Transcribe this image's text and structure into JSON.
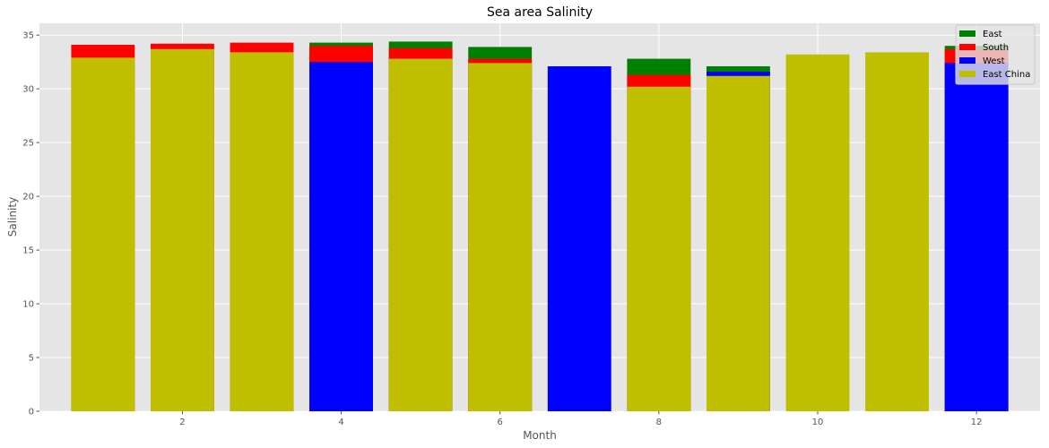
{
  "chart_data": {
    "type": "bar",
    "title": "Sea area Salinity",
    "xlabel": "Month",
    "ylabel": "Salinity",
    "x": [
      1,
      2,
      3,
      4,
      5,
      6,
      7,
      8,
      9,
      10,
      11,
      12
    ],
    "xticks": [
      2,
      4,
      6,
      8,
      10,
      12
    ],
    "xticklabels": [
      "2",
      "4",
      "6",
      "8",
      "10",
      "12"
    ],
    "xlim": [
      0.2,
      12.8
    ],
    "yticks": [
      0,
      5,
      10,
      15,
      20,
      25,
      30,
      35
    ],
    "yticklabels": [
      "0",
      "5",
      "10",
      "15",
      "20",
      "25",
      "30",
      "35"
    ],
    "ylim": [
      0,
      36.1
    ],
    "grid": true,
    "legend_position": "top-right",
    "overlapping_bars": true,
    "series": [
      {
        "name": "East",
        "color": "#008000",
        "values": [
          null,
          null,
          null,
          34.3,
          34.4,
          33.9,
          null,
          32.8,
          32.1,
          null,
          null,
          34.0
        ]
      },
      {
        "name": "South",
        "color": "#ff0000",
        "values": [
          34.1,
          34.2,
          34.3,
          34.0,
          33.8,
          32.8,
          null,
          31.3,
          null,
          null,
          null,
          33.7
        ]
      },
      {
        "name": "West",
        "color": "#0000ff",
        "values": [
          null,
          null,
          null,
          32.5,
          null,
          null,
          32.1,
          null,
          31.6,
          null,
          null,
          32.4
        ]
      },
      {
        "name": "East China",
        "color": "#bfbf00",
        "values": [
          32.9,
          33.7,
          33.4,
          null,
          32.8,
          32.4,
          null,
          30.2,
          31.2,
          33.2,
          33.4,
          null
        ]
      }
    ]
  }
}
